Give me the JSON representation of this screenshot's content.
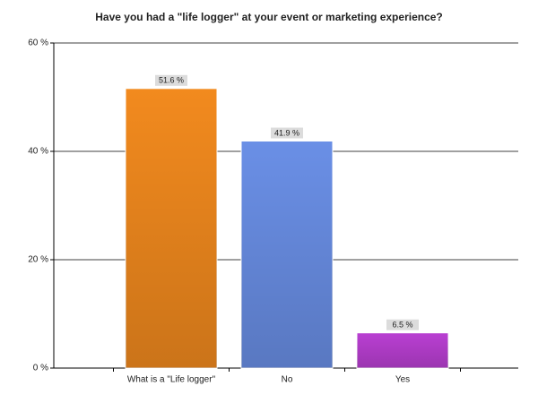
{
  "chart_data": {
    "type": "bar",
    "title": "Have you had a \"life logger\" at your event or marketing experience?",
    "categories": [
      "What is a \"Life logger\"",
      "No",
      "Yes"
    ],
    "values": [
      51.6,
      41.9,
      6.5
    ],
    "value_labels": [
      "51.6 %",
      "41.9 %",
      "6.5 %"
    ],
    "colors": [
      "#f28a1e",
      "#6a8fe6",
      "#b93fd2"
    ],
    "ylim": [
      0,
      60
    ],
    "yticks": [
      {
        "value": 0,
        "label": "0 %"
      },
      {
        "value": 20,
        "label": "20 %"
      },
      {
        "value": 40,
        "label": "40 %"
      },
      {
        "value": 60,
        "label": "60 %"
      }
    ],
    "grid": true
  }
}
